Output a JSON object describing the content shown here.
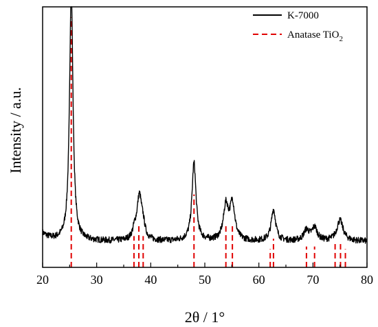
{
  "chart_data": {
    "type": "line",
    "xlabel": "2θ / 1°",
    "ylabel": "Intensity / a.u.",
    "xlim": [
      20,
      80
    ],
    "x_ticks": [
      20,
      30,
      40,
      50,
      60,
      70,
      80
    ],
    "y_ticks_shown": false,
    "grid": false,
    "legend_placement": "top-right",
    "legend": [
      {
        "label": "K-7000",
        "style": "solid",
        "color": "#000000"
      },
      {
        "label": "Anatase TiO",
        "subscript": "2",
        "style": "dashed",
        "color": "#e00000"
      }
    ],
    "series": [
      {
        "name": "K-7000",
        "color": "#000000",
        "baseline": 0.1,
        "noise": 0.012,
        "peaks": [
          {
            "x": 25.3,
            "height": 0.97,
            "width": 0.38
          },
          {
            "x": 37.0,
            "height": 0.03,
            "width": 0.4
          },
          {
            "x": 37.9,
            "height": 0.17,
            "width": 0.55
          },
          {
            "x": 38.6,
            "height": 0.04,
            "width": 0.4
          },
          {
            "x": 48.0,
            "height": 0.3,
            "width": 0.45
          },
          {
            "x": 53.9,
            "height": 0.13,
            "width": 0.55
          },
          {
            "x": 55.1,
            "height": 0.14,
            "width": 0.55
          },
          {
            "x": 62.7,
            "height": 0.12,
            "width": 0.5
          },
          {
            "x": 68.8,
            "height": 0.04,
            "width": 0.6
          },
          {
            "x": 70.3,
            "height": 0.05,
            "width": 0.6
          },
          {
            "x": 75.0,
            "height": 0.08,
            "width": 0.7
          }
        ]
      },
      {
        "name": "Anatase TiO2",
        "color": "#e00000",
        "reference_lines": [
          {
            "x": 25.3,
            "intensity": 0.96
          },
          {
            "x": 36.9,
            "intensity": 0.12
          },
          {
            "x": 37.8,
            "intensity": 0.16
          },
          {
            "x": 38.6,
            "intensity": 0.12
          },
          {
            "x": 48.0,
            "intensity": 0.28
          },
          {
            "x": 53.9,
            "intensity": 0.17
          },
          {
            "x": 55.1,
            "intensity": 0.17
          },
          {
            "x": 62.1,
            "intensity": 0.07
          },
          {
            "x": 62.7,
            "intensity": 0.11
          },
          {
            "x": 68.8,
            "intensity": 0.08
          },
          {
            "x": 70.3,
            "intensity": 0.08
          },
          {
            "x": 74.1,
            "intensity": 0.09
          },
          {
            "x": 75.1,
            "intensity": 0.09
          },
          {
            "x": 76.0,
            "intensity": 0.07
          }
        ]
      }
    ]
  }
}
